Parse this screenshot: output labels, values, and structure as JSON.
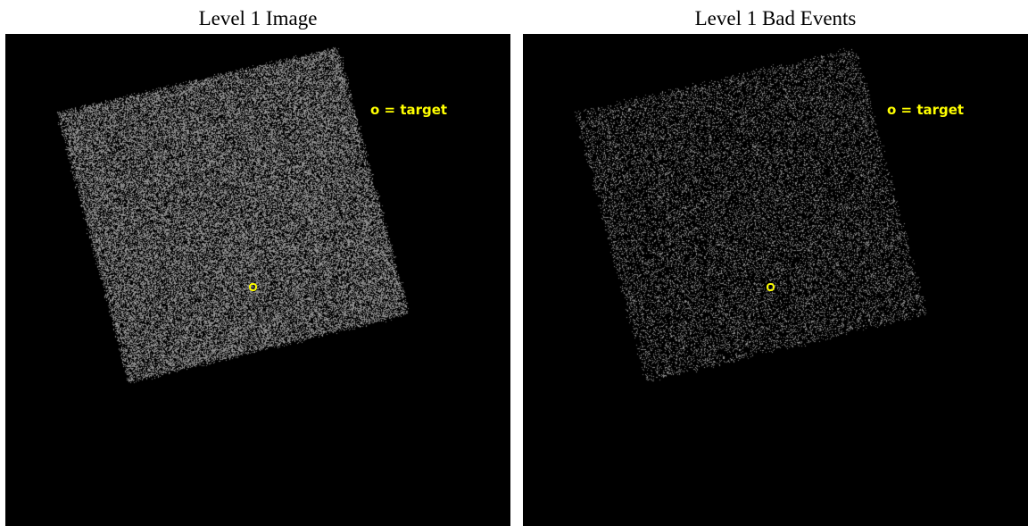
{
  "panels": [
    {
      "title": "Level 1 Image",
      "legend": "o = target"
    },
    {
      "title": "Level 1 Bad Events",
      "legend": "o = target"
    }
  ],
  "colors": {
    "background": "#000000",
    "events": "#8a8a8a",
    "marker": "#ffff00"
  }
}
